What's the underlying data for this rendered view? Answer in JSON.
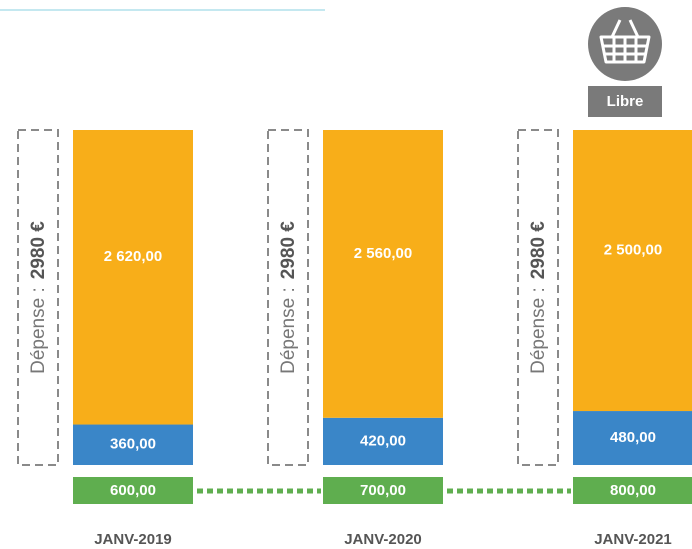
{
  "chart_data": {
    "type": "bar",
    "stacked": true,
    "categories": [
      "JANV-2019",
      "JANV-2020",
      "JANV-2021"
    ],
    "series": [
      {
        "color": "#3a86c8",
        "values": [
          360,
          420,
          480
        ],
        "value_labels": [
          "360,00",
          "420,00",
          "480,00"
        ]
      },
      {
        "color": "#f8ae19",
        "values": [
          2620,
          2560,
          2500
        ],
        "value_labels": [
          "2 620,00",
          "2 560,00",
          "2 500,00"
        ]
      }
    ],
    "boxes": {
      "color": "#5fae4f",
      "values": [
        600,
        700,
        800
      ],
      "value_labels": [
        "600,00",
        "700,00",
        "800,00"
      ]
    },
    "total_prefix": "Dépense :",
    "totals": [
      2980,
      2980,
      2980
    ],
    "totals_labels": [
      "2980 €",
      "2980 €",
      "2980 €"
    ],
    "badge": {
      "label": "Libre"
    }
  }
}
